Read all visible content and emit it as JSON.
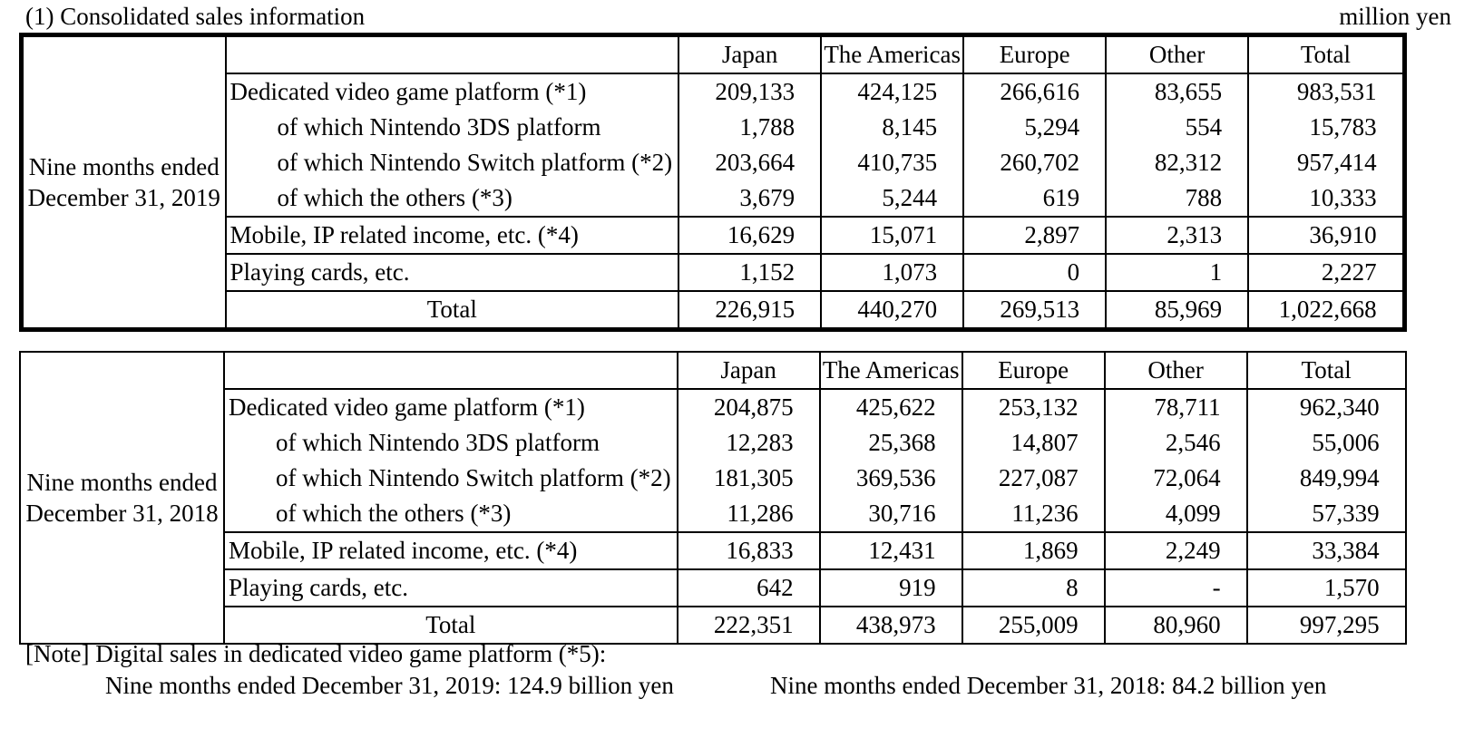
{
  "title": "(1) Consolidated sales information",
  "unit": "million yen",
  "columns": [
    "Japan",
    "The Americas",
    "Europe",
    "Other",
    "Total"
  ],
  "tables": [
    {
      "period": "Nine months ended December 31, 2019",
      "rows": [
        {
          "label": "Dedicated video game platform (*1)",
          "values": [
            "209,133",
            "424,125",
            "266,616",
            "83,655",
            "983,531"
          ]
        },
        {
          "label": "of which Nintendo 3DS platform",
          "values": [
            "1,788",
            "8,145",
            "5,294",
            "554",
            "15,783"
          ]
        },
        {
          "label": "of which Nintendo Switch platform (*2)",
          "values": [
            "203,664",
            "410,735",
            "260,702",
            "82,312",
            "957,414"
          ]
        },
        {
          "label": "of which the others (*3)",
          "values": [
            "3,679",
            "5,244",
            "619",
            "788",
            "10,333"
          ]
        },
        {
          "label": "Mobile, IP related income, etc. (*4)",
          "values": [
            "16,629",
            "15,071",
            "2,897",
            "2,313",
            "36,910"
          ]
        },
        {
          "label": "Playing cards, etc.",
          "values": [
            "1,152",
            "1,073",
            "0",
            "1",
            "2,227"
          ]
        },
        {
          "label": "Total",
          "values": [
            "226,915",
            "440,270",
            "269,513",
            "85,969",
            "1,022,668"
          ]
        }
      ]
    },
    {
      "period": "Nine months ended December 31, 2018",
      "rows": [
        {
          "label": "Dedicated video game platform (*1)",
          "values": [
            "204,875",
            "425,622",
            "253,132",
            "78,711",
            "962,340"
          ]
        },
        {
          "label": "of which Nintendo 3DS platform",
          "values": [
            "12,283",
            "25,368",
            "14,807",
            "2,546",
            "55,006"
          ]
        },
        {
          "label": "of which Nintendo Switch platform (*2)",
          "values": [
            "181,305",
            "369,536",
            "227,087",
            "72,064",
            "849,994"
          ]
        },
        {
          "label": "of which the others (*3)",
          "values": [
            "11,286",
            "30,716",
            "11,236",
            "4,099",
            "57,339"
          ]
        },
        {
          "label": "Mobile, IP related income, etc. (*4)",
          "values": [
            "16,833",
            "12,431",
            "1,869",
            "2,249",
            "33,384"
          ]
        },
        {
          "label": "Playing cards, etc.",
          "values": [
            "642",
            "919",
            "8",
            "-",
            "1,570"
          ]
        },
        {
          "label": "Total",
          "values": [
            "222,351",
            "438,973",
            "255,009",
            "80,960",
            "997,295"
          ]
        }
      ]
    }
  ],
  "note": {
    "heading": "[Note] Digital sales in dedicated video game platform (*5):",
    "line_2019": "Nine months ended December 31, 2019: 124.9 billion yen",
    "line_2018": "Nine months ended December 31, 2018: 84.2 billion yen"
  }
}
